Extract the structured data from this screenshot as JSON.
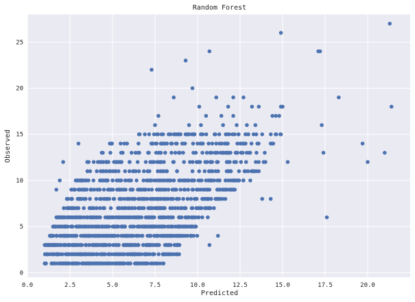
{
  "chart_data": {
    "type": "scatter",
    "title": "Random Forest",
    "xlabel": "Predicted",
    "ylabel": "Observed",
    "xlim": [
      0,
      22.5
    ],
    "ylim": [
      -0.5,
      28
    ],
    "xticks": [
      0,
      2.5,
      5,
      7.5,
      10,
      12.5,
      15,
      17.5,
      20
    ],
    "xtick_labels": [
      "0.0",
      "2.5",
      "5.0",
      "7.5",
      "10.0",
      "12.5",
      "15.0",
      "17.5",
      "20.0"
    ],
    "yticks": [
      0,
      5,
      10,
      15,
      20,
      25
    ],
    "ytick_labels": [
      "0",
      "5",
      "10",
      "15",
      "20",
      "25"
    ],
    "grid": true,
    "colors": {
      "background": "#EAEAF2",
      "grid": "#FFFFFF",
      "marker": "#4C72B0"
    },
    "series": [
      {
        "points": [
          [
            21.3,
            27
          ],
          [
            14.9,
            26
          ],
          [
            10.7,
            24
          ],
          [
            17.1,
            24
          ],
          [
            17.2,
            24
          ],
          [
            9.3,
            23
          ],
          [
            7.3,
            22
          ],
          [
            9.7,
            20
          ],
          [
            8.6,
            19
          ],
          [
            11.1,
            19
          ],
          [
            12.1,
            19
          ],
          [
            12.7,
            19
          ],
          [
            18.3,
            19
          ],
          [
            10.1,
            18
          ],
          [
            11.8,
            18
          ],
          [
            13.2,
            18
          ],
          [
            13.6,
            18
          ],
          [
            14.9,
            18
          ],
          [
            15.0,
            18
          ],
          [
            21.4,
            18
          ],
          [
            7.7,
            17
          ],
          [
            10.5,
            17
          ],
          [
            11.4,
            17
          ],
          [
            12.1,
            17
          ],
          [
            14.4,
            17
          ],
          [
            14.6,
            17
          ],
          [
            14.8,
            17
          ],
          [
            7.5,
            16
          ],
          [
            9.5,
            16
          ],
          [
            10.2,
            16
          ],
          [
            11.5,
            16
          ],
          [
            12.3,
            16
          ],
          [
            12.9,
            16
          ],
          [
            13.4,
            16
          ],
          [
            17.3,
            16
          ],
          [
            6.6,
            15
          ],
          [
            6.9,
            15
          ],
          [
            8.3,
            15
          ],
          [
            9.0,
            15
          ],
          [
            10.3,
            15
          ],
          [
            11.0,
            15
          ],
          [
            12.4,
            15
          ],
          [
            13.8,
            15
          ],
          [
            14.9,
            15
          ],
          [
            17.4,
            13
          ],
          [
            19.7,
            14
          ],
          [
            21.0,
            13
          ],
          [
            20.0,
            12
          ],
          [
            15.3,
            12
          ],
          [
            14.3,
            14
          ],
          [
            17.6,
            6
          ],
          [
            10.6,
            6
          ],
          [
            11.2,
            4
          ],
          [
            10.7,
            3
          ],
          [
            8.0,
            1
          ],
          [
            2.1,
            12
          ],
          [
            3.0,
            14
          ],
          [
            3.6,
            12
          ],
          [
            4.9,
            14
          ],
          [
            1.7,
            9
          ],
          [
            1.9,
            10
          ],
          [
            13.1,
            10
          ],
          [
            12.1,
            9
          ],
          [
            14.3,
            8
          ],
          [
            13.8,
            8
          ],
          [
            11.3,
            9
          ],
          [
            10.8,
            8
          ],
          [
            9.8,
            10
          ],
          [
            8.2,
            11
          ],
          [
            8.9,
            13
          ],
          [
            9.2,
            12
          ],
          [
            10.0,
            12
          ],
          [
            11.8,
            12
          ],
          [
            13.6,
            11
          ],
          [
            12.7,
            10
          ],
          [
            9.7,
            7
          ],
          [
            8.7,
            5
          ],
          [
            7.6,
            4
          ],
          [
            6.8,
            3
          ],
          [
            6.3,
            2
          ],
          [
            5.6,
            13
          ],
          [
            6.0,
            12
          ],
          [
            7.1,
            13
          ],
          [
            7.9,
            14
          ],
          [
            8.5,
            14
          ],
          [
            6.5,
            13
          ],
          [
            5.2,
            12
          ],
          [
            4.3,
            11
          ]
        ]
      }
    ]
  }
}
